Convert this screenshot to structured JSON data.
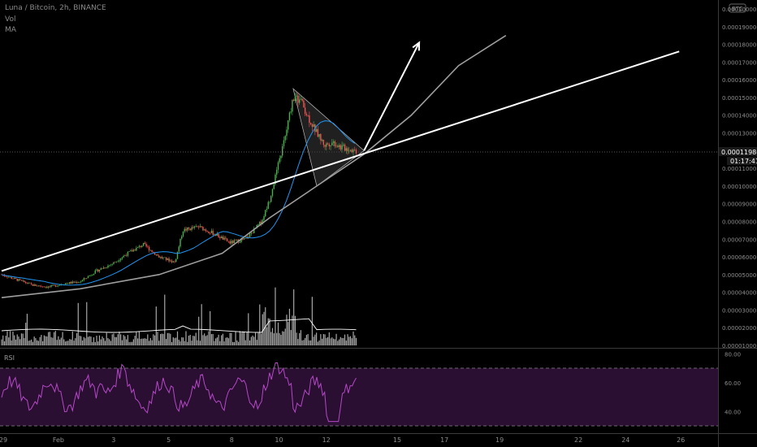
{
  "header": {
    "symbol_line": "Luna / Bitcoin, 2h, BINANCE",
    "vol_label": "Vol",
    "ma_label": "MA",
    "currency_badge": "BTC"
  },
  "price_axis": {
    "labels": [
      "0.00020000",
      "0.00019000",
      "0.00018000",
      "0.00017000",
      "0.00016000",
      "0.00015000",
      "0.00014000",
      "0.00013000",
      "0.00011000",
      "0.00010000",
      "0.00009000",
      "0.00008000",
      "0.00007000",
      "0.00006000",
      "0.00005000",
      "0.00004000",
      "0.00003000",
      "0.00002000",
      "0.00001000"
    ],
    "values": [
      0.0002,
      0.00019,
      0.00018,
      0.00017,
      0.00016,
      0.00015,
      0.00014,
      0.00013,
      0.00011,
      0.0001,
      9e-05,
      8e-05,
      7e-05,
      6e-05,
      5e-05,
      4e-05,
      3e-05,
      2e-05,
      1e-05
    ],
    "current_price": "0.00011986",
    "countdown": "01:17:41"
  },
  "rsi": {
    "label": "RSI",
    "levels": [
      "80.00",
      "60.00",
      "40.00"
    ],
    "level_values": [
      80,
      60,
      40
    ],
    "band": [
      70,
      30
    ]
  },
  "x_axis": {
    "labels": [
      "29",
      "Feb",
      "3",
      "5",
      "8",
      "10",
      "12",
      "15",
      "17",
      "19",
      "22",
      "24",
      "26"
    ],
    "positions": [
      0,
      7,
      14,
      21,
      29,
      35,
      41,
      50,
      56,
      63,
      73,
      79,
      86
    ]
  },
  "colors": {
    "up": "#4caf50",
    "down": "#ef5350",
    "ma": "#2196f3",
    "volume": "#c4c4c4",
    "rsi_line": "#b548c6",
    "rsi_band": "#2a0f33",
    "trendline": "#ffffff",
    "curve": "#9e9e9e",
    "triangle_fill": "#3a3a3a"
  },
  "chart_data": {
    "type": "candlestick",
    "x_unit": "index of 2h bars (0 = 29 Jan)",
    "price_ylim": [
      1e-05,
      0.0002
    ],
    "close_path": [
      {
        "x": 0,
        "y": 5e-05
      },
      {
        "x": 2,
        "y": 4.7e-05
      },
      {
        "x": 4,
        "y": 4.4e-05
      },
      {
        "x": 6,
        "y": 4.3e-05
      },
      {
        "x": 8,
        "y": 4.5e-05
      },
      {
        "x": 10,
        "y": 4.6e-05
      },
      {
        "x": 12,
        "y": 5.2e-05
      },
      {
        "x": 14,
        "y": 5.6e-05
      },
      {
        "x": 16,
        "y": 6.2e-05
      },
      {
        "x": 18,
        "y": 6.7e-05
      },
      {
        "x": 20,
        "y": 6e-05
      },
      {
        "x": 22,
        "y": 5.7e-05
      },
      {
        "x": 23,
        "y": 7.5e-05
      },
      {
        "x": 25,
        "y": 7.7e-05
      },
      {
        "x": 27,
        "y": 7.3e-05
      },
      {
        "x": 29,
        "y": 6.8e-05
      },
      {
        "x": 31,
        "y": 7e-05
      },
      {
        "x": 33,
        "y": 8e-05
      },
      {
        "x": 34,
        "y": 9.2e-05
      },
      {
        "x": 35,
        "y": 0.00011
      },
      {
        "x": 36,
        "y": 0.000128
      },
      {
        "x": 37,
        "y": 0.00015
      },
      {
        "x": 38,
        "y": 0.000148
      },
      {
        "x": 39,
        "y": 0.000138
      },
      {
        "x": 40,
        "y": 0.00013
      },
      {
        "x": 41,
        "y": 0.000123
      },
      {
        "x": 42,
        "y": 0.000125
      },
      {
        "x": 43,
        "y": 0.000122
      },
      {
        "x": 44,
        "y": 0.000121
      },
      {
        "x": 45,
        "y": 0.00011986
      }
    ],
    "triangle_pattern": [
      {
        "x": 37,
        "y": 0.000155
      },
      {
        "x": 40,
        "y": 0.0001
      },
      {
        "x": 46,
        "y": 0.00012
      }
    ],
    "trendline": [
      {
        "x": 0,
        "y": 5.2e-05
      },
      {
        "x": 86,
        "y": 0.000176
      }
    ],
    "arrow": [
      {
        "x": 46,
        "y": 0.00012
      },
      {
        "x": 53,
        "y": 0.000181
      }
    ],
    "curve_points": [
      {
        "x": 0,
        "y": 3.7e-05
      },
      {
        "x": 10,
        "y": 4.2e-05
      },
      {
        "x": 20,
        "y": 5e-05
      },
      {
        "x": 28,
        "y": 6.2e-05
      },
      {
        "x": 34,
        "y": 8.2e-05
      },
      {
        "x": 40,
        "y": 0.0001
      },
      {
        "x": 46,
        "y": 0.000118
      },
      {
        "x": 52,
        "y": 0.00014
      },
      {
        "x": 58,
        "y": 0.000168
      },
      {
        "x": 64,
        "y": 0.000185
      }
    ],
    "rsi_ylim": [
      25,
      80
    ],
    "rsi_levels": [
      70,
      30
    ]
  }
}
